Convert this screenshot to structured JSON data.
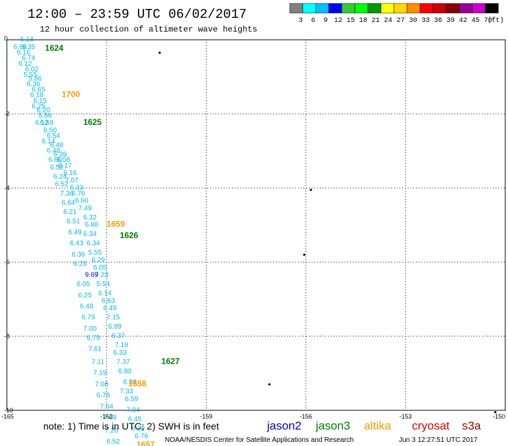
{
  "header": {
    "title": "12:00 – 23:59 UTC 06/02/2017",
    "subtitle": "12 hour collection of altimeter wave heights"
  },
  "scale": {
    "labels": [
      "3",
      "6",
      "9",
      "12",
      "15",
      "18",
      "21",
      "24",
      "27",
      "30",
      "33",
      "36",
      "39",
      "42",
      "45",
      "70"
    ],
    "unit": "(ft)",
    "colors": [
      "#808080",
      "#00ffff",
      "#00bfff",
      "#0000ff",
      "#32cd32",
      "#00ff00",
      "#009900",
      "#ffff00",
      "#ffd700",
      "#ff8c00",
      "#ff0000",
      "#cc0000",
      "#8b0000",
      "#990099",
      "#cc00cc",
      "#000000"
    ]
  },
  "axes": {
    "x_ticks": [
      "-165",
      "-162",
      "-159",
      "-156",
      "-153",
      "-150"
    ],
    "y_ticks": [
      "0",
      "-2",
      "-4",
      "-6",
      "-8",
      "-10"
    ],
    "x_range": [
      -165,
      -150
    ],
    "y_range": [
      -10,
      0
    ]
  },
  "footer": {
    "note": "note: 1) Time is in UTC; 2) SWH is in feet",
    "satellites": [
      {
        "name": "jason2",
        "color": "#0000cc"
      },
      {
        "name": "jason3",
        "color": "#007a00"
      },
      {
        "name": "altika",
        "color": "#ff9900"
      },
      {
        "name": "cryosat",
        "color": "#dd0000"
      },
      {
        "name": "s3a",
        "color": "#990000"
      }
    ],
    "credit": "NOAA/NESDIS Center for Satellite Applications and Research",
    "timestamp": "Jun  3 12:27:51 UTC 2017"
  },
  "colors": {
    "swh_cyan": "#00b8e6",
    "swh_blue": "#0000cc",
    "jason3_time": "#007a00",
    "altika_time": "#ff9900"
  },
  "map_data": {
    "swh_observations": [
      {
        "lon": -164.6,
        "lat": -0.05,
        "value": "6.14"
      },
      {
        "lon": -164.8,
        "lat": -0.25,
        "value": "6.68"
      },
      {
        "lon": -164.55,
        "lat": -0.25,
        "value": "6.35"
      },
      {
        "lon": -164.7,
        "lat": -0.4,
        "value": "6.16"
      },
      {
        "lon": -164.55,
        "lat": -0.55,
        "value": "6.74"
      },
      {
        "lon": -164.65,
        "lat": -0.7,
        "value": "6.12"
      },
      {
        "lon": -164.45,
        "lat": -0.85,
        "value": "6.02"
      },
      {
        "lon": -164.5,
        "lat": -1.0,
        "value": "5.55"
      },
      {
        "lon": -164.35,
        "lat": -1.1,
        "value": "5.86"
      },
      {
        "lon": -164.4,
        "lat": -1.25,
        "value": "6.36"
      },
      {
        "lon": -164.25,
        "lat": -1.4,
        "value": "6.65"
      },
      {
        "lon": -164.3,
        "lat": -1.55,
        "value": "6.18"
      },
      {
        "lon": -164.2,
        "lat": -1.7,
        "value": "6.15"
      },
      {
        "lon": -164.25,
        "lat": -1.85,
        "value": "6.25"
      },
      {
        "lon": -164.1,
        "lat": -1.95,
        "value": "6.20"
      },
      {
        "lon": -164.05,
        "lat": -2.1,
        "value": "5.86"
      },
      {
        "lon": -164.0,
        "lat": -2.3,
        "value": "6.59"
      },
      {
        "lon": -164.15,
        "lat": -2.3,
        "value": "6.12"
      },
      {
        "lon": -163.9,
        "lat": -2.5,
        "value": "6.50"
      },
      {
        "lon": -163.8,
        "lat": -2.65,
        "value": "6.54"
      },
      {
        "lon": -163.95,
        "lat": -2.8,
        "value": "6.14"
      },
      {
        "lon": -163.7,
        "lat": -2.9,
        "value": "6.48"
      },
      {
        "lon": -163.8,
        "lat": -3.05,
        "value": "6.48"
      },
      {
        "lon": -163.6,
        "lat": -3.15,
        "value": "6.39"
      },
      {
        "lon": -163.75,
        "lat": -3.3,
        "value": "6.60"
      },
      {
        "lon": -163.5,
        "lat": -3.3,
        "value": "6.08"
      },
      {
        "lon": -163.7,
        "lat": -3.5,
        "value": "6.52"
      },
      {
        "lon": -163.45,
        "lat": -3.45,
        "value": "6.17"
      },
      {
        "lon": -163.3,
        "lat": -3.65,
        "value": "6.16"
      },
      {
        "lon": -163.6,
        "lat": -3.75,
        "value": "6.24"
      },
      {
        "lon": -163.25,
        "lat": -3.85,
        "value": "7.07"
      },
      {
        "lon": -163.55,
        "lat": -3.95,
        "value": "6.52"
      },
      {
        "lon": -163.1,
        "lat": -4.05,
        "value": "6.33"
      },
      {
        "lon": -163.4,
        "lat": -4.2,
        "value": "7.36"
      },
      {
        "lon": -163.05,
        "lat": -4.2,
        "value": "6.76"
      },
      {
        "lon": -163.35,
        "lat": -4.45,
        "value": "6.64"
      },
      {
        "lon": -162.95,
        "lat": -4.4,
        "value": "6.60"
      },
      {
        "lon": -163.3,
        "lat": -4.7,
        "value": "6.21"
      },
      {
        "lon": -162.85,
        "lat": -4.6,
        "value": "7.49"
      },
      {
        "lon": -162.7,
        "lat": -4.85,
        "value": "6.32"
      },
      {
        "lon": -163.2,
        "lat": -4.95,
        "value": "6.51"
      },
      {
        "lon": -162.65,
        "lat": -5.05,
        "value": "6.88"
      },
      {
        "lon": -163.15,
        "lat": -5.25,
        "value": "6.49"
      },
      {
        "lon": -162.7,
        "lat": -5.3,
        "value": "6.34"
      },
      {
        "lon": -163.1,
        "lat": -5.55,
        "value": "6.43"
      },
      {
        "lon": -162.6,
        "lat": -5.55,
        "value": "6.34"
      },
      {
        "lon": -163.05,
        "lat": -5.85,
        "value": "6.36"
      },
      {
        "lon": -162.55,
        "lat": -5.8,
        "value": "5.55"
      },
      {
        "lon": -162.45,
        "lat": -6.0,
        "value": "6.29"
      },
      {
        "lon": -163.0,
        "lat": -6.1,
        "value": "6.28"
      },
      {
        "lon": -162.4,
        "lat": -6.2,
        "value": "6.05"
      },
      {
        "lon": -162.35,
        "lat": -6.4,
        "value": "7.23"
      },
      {
        "lon": -162.3,
        "lat": -6.65,
        "value": "5.54"
      },
      {
        "lon": -162.9,
        "lat": -6.65,
        "value": "6.05"
      },
      {
        "lon": -162.25,
        "lat": -6.9,
        "value": "6.14"
      },
      {
        "lon": -162.85,
        "lat": -6.95,
        "value": "6.25"
      },
      {
        "lon": -162.15,
        "lat": -7.1,
        "value": "6.63"
      },
      {
        "lon": -162.8,
        "lat": -7.25,
        "value": "6.48"
      },
      {
        "lon": -162.1,
        "lat": -7.3,
        "value": "6.49"
      },
      {
        "lon": -162.75,
        "lat": -7.55,
        "value": "6.79"
      },
      {
        "lon": -162.0,
        "lat": -7.55,
        "value": "7.15"
      },
      {
        "lon": -162.7,
        "lat": -7.85,
        "value": "7.00"
      },
      {
        "lon": -161.95,
        "lat": -7.8,
        "value": "6.89"
      },
      {
        "lon": -161.85,
        "lat": -8.05,
        "value": "6.37"
      },
      {
        "lon": -162.6,
        "lat": -8.1,
        "value": "6.79"
      },
      {
        "lon": -161.75,
        "lat": -8.3,
        "value": "7.18"
      },
      {
        "lon": -162.55,
        "lat": -8.4,
        "value": "7.61"
      },
      {
        "lon": -161.8,
        "lat": -8.5,
        "value": "6.33"
      },
      {
        "lon": -162.45,
        "lat": -8.75,
        "value": "7.11"
      },
      {
        "lon": -161.7,
        "lat": -8.75,
        "value": "7.37"
      },
      {
        "lon": -162.4,
        "lat": -9.05,
        "value": "7.19"
      },
      {
        "lon": -161.65,
        "lat": -9.0,
        "value": "6.80"
      },
      {
        "lon": -162.35,
        "lat": -9.35,
        "value": "7.08"
      },
      {
        "lon": -161.5,
        "lat": -9.3,
        "value": "6.38"
      },
      {
        "lon": -161.6,
        "lat": -9.55,
        "value": "7.33"
      },
      {
        "lon": -162.3,
        "lat": -9.65,
        "value": "6.78"
      },
      {
        "lon": -161.45,
        "lat": -9.75,
        "value": "6.59"
      },
      {
        "lon": -162.2,
        "lat": -9.95,
        "value": "7.64"
      },
      {
        "lon": -161.4,
        "lat": -10.05,
        "value": "7.04"
      },
      {
        "lon": -162.1,
        "lat": -10.25,
        "value": "7.08"
      },
      {
        "lon": -161.35,
        "lat": -10.3,
        "value": "6.45"
      },
      {
        "lon": -162.05,
        "lat": -10.6,
        "value": "7.20"
      },
      {
        "lon": -161.25,
        "lat": -10.55,
        "value": "6.28"
      },
      {
        "lon": -161.15,
        "lat": -10.75,
        "value": "6.76"
      },
      {
        "lon": -162.0,
        "lat": -10.9,
        "value": "6.52"
      },
      {
        "lon": -162.65,
        "lat": -6.4,
        "value": "9.69",
        "color": "blue"
      }
    ],
    "time_labels": [
      {
        "lon": -163.85,
        "lat": -0.3,
        "value": "1624",
        "sat": "jason3"
      },
      {
        "lon": -163.35,
        "lat": -1.55,
        "value": "1700",
        "sat": "altika"
      },
      {
        "lon": -162.7,
        "lat": -2.3,
        "value": "1625",
        "sat": "jason3"
      },
      {
        "lon": -162.0,
        "lat": -5.05,
        "value": "1659",
        "sat": "altika"
      },
      {
        "lon": -161.6,
        "lat": -5.35,
        "value": "1626",
        "sat": "jason3"
      },
      {
        "lon": -160.35,
        "lat": -8.75,
        "value": "1627",
        "sat": "jason3"
      },
      {
        "lon": -161.35,
        "lat": -9.35,
        "value": "1658",
        "sat": "altika"
      },
      {
        "lon": -161.1,
        "lat": -11.0,
        "value": "1657",
        "sat": "altika"
      }
    ],
    "islands": [
      {
        "lon": -160.4,
        "lat": -0.35
      },
      {
        "lon": -155.85,
        "lat": -4.05
      },
      {
        "lon": -156.05,
        "lat": -5.8
      },
      {
        "lon": -157.1,
        "lat": -9.3
      },
      {
        "lon": -150.3,
        "lat": -10.05
      }
    ]
  }
}
